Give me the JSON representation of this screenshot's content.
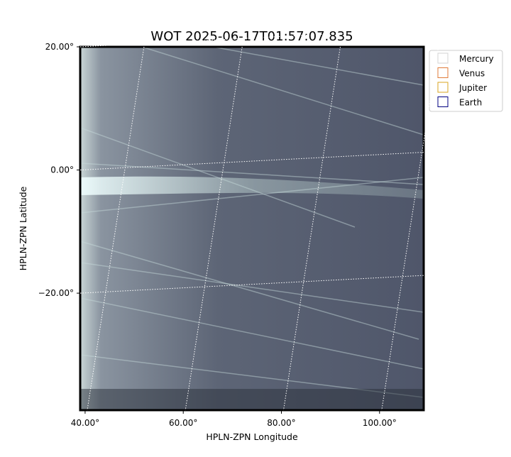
{
  "chart_data": {
    "type": "image",
    "title": "WOT 2025-06-17T01:57:07.835",
    "xlabel": "HPLN-ZPN Longitude",
    "ylabel": "HPLN-ZPN Latitude",
    "xlim": [
      39,
      109
    ],
    "ylim": [
      -39,
      20
    ],
    "xticks": [
      {
        "value": 40,
        "label": "40.00°"
      },
      {
        "value": 60,
        "label": "60.00°"
      },
      {
        "value": 80,
        "label": "80.00°"
      },
      {
        "value": 100,
        "label": "100.00°"
      }
    ],
    "yticks": [
      {
        "value": 20,
        "label": "20.00°"
      },
      {
        "value": 0,
        "label": "0.00°"
      },
      {
        "value": -20,
        "label": "−20.00°"
      }
    ],
    "grid": true,
    "series": [
      {
        "name": "Mercury",
        "color": "#d3d3d3"
      },
      {
        "name": "Venus",
        "color": "#e07b39"
      },
      {
        "name": "Jupiter",
        "color": "#daa520"
      },
      {
        "name": "Earth",
        "color": "#000080"
      }
    ]
  }
}
